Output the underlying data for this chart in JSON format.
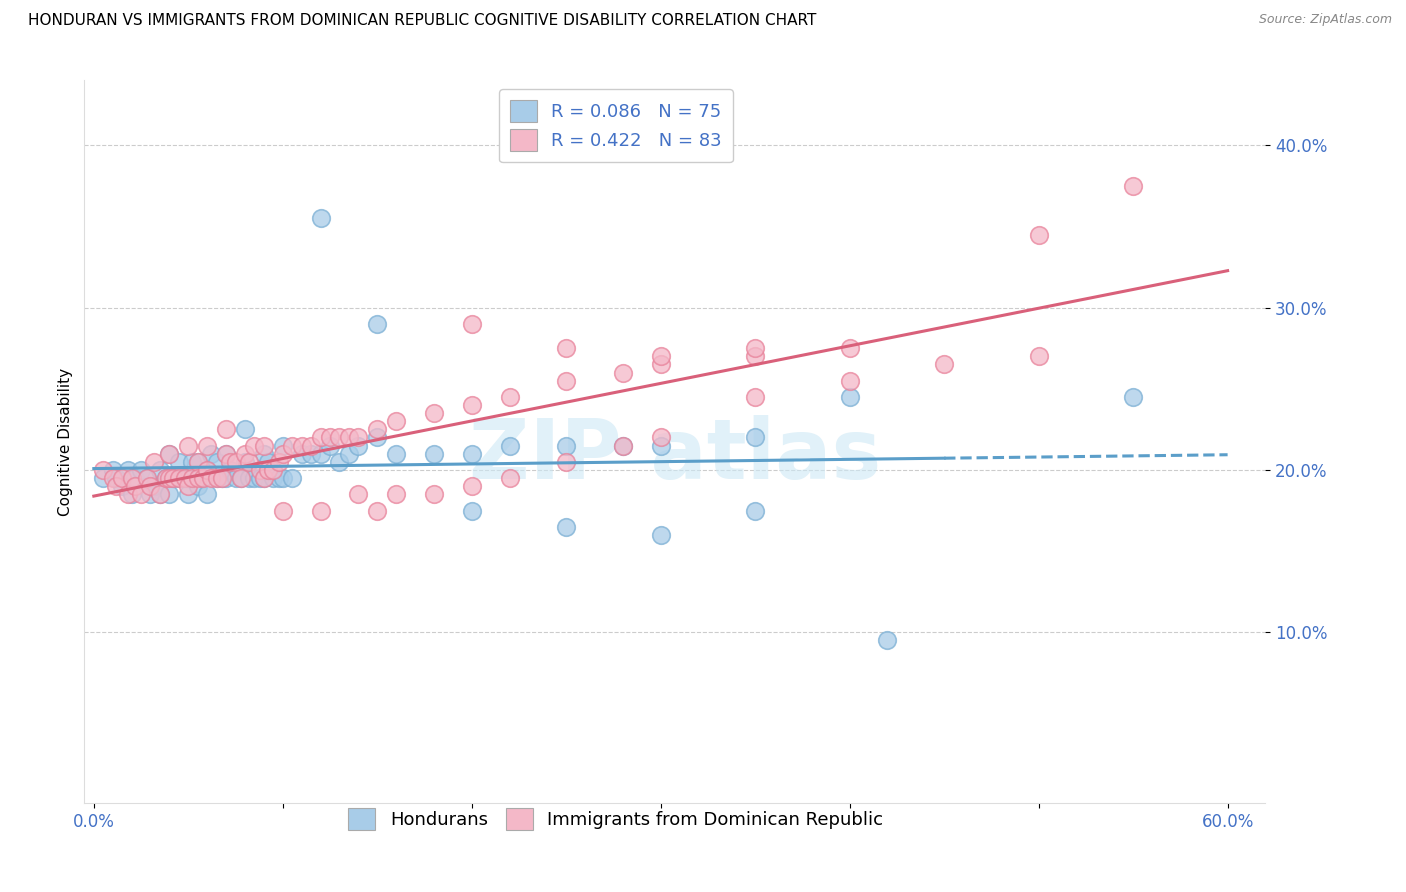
{
  "title": "HONDURAN VS IMMIGRANTS FROM DOMINICAN REPUBLIC COGNITIVE DISABILITY CORRELATION CHART",
  "source": "Source: ZipAtlas.com",
  "ylabel": "Cognitive Disability",
  "xlabel": "",
  "xlim": [
    -0.005,
    0.62
  ],
  "ylim": [
    -0.005,
    0.44
  ],
  "ytick_vals": [
    0.1,
    0.2,
    0.3,
    0.4
  ],
  "ytick_labels": [
    "10.0%",
    "20.0%",
    "30.0%",
    "40.0%"
  ],
  "xtick_vals": [
    0.0,
    0.1,
    0.2,
    0.3,
    0.4,
    0.5,
    0.6
  ],
  "xtick_labels": [
    "0.0%",
    "",
    "",
    "",
    "",
    "",
    "60.0%"
  ],
  "legend_labels": [
    "Hondurans",
    "Immigrants from Dominican Republic"
  ],
  "blue_color": "#a8cce8",
  "pink_color": "#f4b8c8",
  "blue_edge_color": "#7bafd4",
  "pink_edge_color": "#e8829a",
  "blue_line_color": "#5b9ec9",
  "pink_line_color": "#d9607a",
  "tick_label_color": "#4472c6",
  "legend_text_color": "#4472c6",
  "R_blue": 0.086,
  "N_blue": 75,
  "R_pink": 0.422,
  "N_pink": 83,
  "watermark": "ZIP atlas",
  "background_color": "#ffffff",
  "grid_color": "#cccccc",
  "title_fontsize": 11,
  "axis_label_fontsize": 11,
  "tick_fontsize": 12,
  "legend_fontsize": 13,
  "blue_x": [
    0.005,
    0.01,
    0.012,
    0.015,
    0.018,
    0.02,
    0.022,
    0.025,
    0.028,
    0.03,
    0.032,
    0.035,
    0.035,
    0.038,
    0.04,
    0.04,
    0.042,
    0.045,
    0.045,
    0.048,
    0.05,
    0.05,
    0.052,
    0.055,
    0.055,
    0.058,
    0.06,
    0.06,
    0.062,
    0.065,
    0.065,
    0.068,
    0.07,
    0.07,
    0.072,
    0.075,
    0.078,
    0.08,
    0.08,
    0.082,
    0.085,
    0.088,
    0.09,
    0.09,
    0.092,
    0.095,
    0.098,
    0.1,
    0.1,
    0.105,
    0.11,
    0.115,
    0.12,
    0.125,
    0.13,
    0.135,
    0.14,
    0.15,
    0.16,
    0.18,
    0.2,
    0.22,
    0.25,
    0.28,
    0.3,
    0.35,
    0.4,
    0.55,
    0.42,
    0.35,
    0.3,
    0.25,
    0.2,
    0.15,
    0.12
  ],
  "blue_y": [
    0.195,
    0.2,
    0.195,
    0.19,
    0.2,
    0.185,
    0.195,
    0.2,
    0.195,
    0.185,
    0.19,
    0.2,
    0.185,
    0.195,
    0.185,
    0.21,
    0.195,
    0.195,
    0.205,
    0.195,
    0.185,
    0.195,
    0.205,
    0.19,
    0.205,
    0.195,
    0.185,
    0.2,
    0.21,
    0.195,
    0.205,
    0.195,
    0.195,
    0.21,
    0.2,
    0.195,
    0.195,
    0.205,
    0.225,
    0.195,
    0.195,
    0.195,
    0.195,
    0.21,
    0.205,
    0.195,
    0.195,
    0.195,
    0.215,
    0.195,
    0.21,
    0.21,
    0.21,
    0.215,
    0.205,
    0.21,
    0.215,
    0.22,
    0.21,
    0.21,
    0.21,
    0.215,
    0.215,
    0.215,
    0.215,
    0.22,
    0.245,
    0.245,
    0.095,
    0.175,
    0.16,
    0.165,
    0.175,
    0.29,
    0.355
  ],
  "pink_x": [
    0.005,
    0.01,
    0.012,
    0.015,
    0.018,
    0.02,
    0.022,
    0.025,
    0.028,
    0.03,
    0.032,
    0.035,
    0.038,
    0.04,
    0.04,
    0.042,
    0.045,
    0.048,
    0.05,
    0.05,
    0.052,
    0.055,
    0.055,
    0.058,
    0.06,
    0.06,
    0.062,
    0.065,
    0.068,
    0.07,
    0.07,
    0.072,
    0.075,
    0.078,
    0.08,
    0.082,
    0.085,
    0.088,
    0.09,
    0.09,
    0.092,
    0.095,
    0.098,
    0.1,
    0.105,
    0.11,
    0.115,
    0.12,
    0.125,
    0.13,
    0.135,
    0.14,
    0.15,
    0.16,
    0.18,
    0.2,
    0.22,
    0.25,
    0.28,
    0.3,
    0.35,
    0.4,
    0.5,
    0.2,
    0.25,
    0.3,
    0.35,
    0.15,
    0.1,
    0.12,
    0.14,
    0.16,
    0.18,
    0.2,
    0.22,
    0.25,
    0.28,
    0.3,
    0.35,
    0.4,
    0.45,
    0.5,
    0.55
  ],
  "pink_y": [
    0.2,
    0.195,
    0.19,
    0.195,
    0.185,
    0.195,
    0.19,
    0.185,
    0.195,
    0.19,
    0.205,
    0.185,
    0.195,
    0.195,
    0.21,
    0.195,
    0.195,
    0.195,
    0.19,
    0.215,
    0.195,
    0.205,
    0.195,
    0.195,
    0.2,
    0.215,
    0.195,
    0.195,
    0.195,
    0.21,
    0.225,
    0.205,
    0.205,
    0.195,
    0.21,
    0.205,
    0.215,
    0.2,
    0.195,
    0.215,
    0.2,
    0.2,
    0.205,
    0.21,
    0.215,
    0.215,
    0.215,
    0.22,
    0.22,
    0.22,
    0.22,
    0.22,
    0.225,
    0.23,
    0.235,
    0.24,
    0.245,
    0.255,
    0.26,
    0.265,
    0.27,
    0.275,
    0.345,
    0.29,
    0.275,
    0.27,
    0.275,
    0.175,
    0.175,
    0.175,
    0.185,
    0.185,
    0.185,
    0.19,
    0.195,
    0.205,
    0.215,
    0.22,
    0.245,
    0.255,
    0.265,
    0.27,
    0.375
  ]
}
